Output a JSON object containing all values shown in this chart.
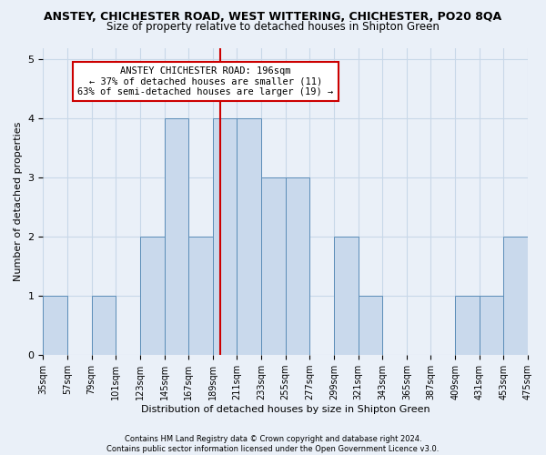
{
  "title_line1": "ANSTEY, CHICHESTER ROAD, WEST WITTERING, CHICHESTER, PO20 8QA",
  "title_line2": "Size of property relative to detached houses in Shipton Green",
  "xlabel": "Distribution of detached houses by size in Shipton Green",
  "ylabel": "Number of detached properties",
  "bin_edges": [
    35,
    57,
    79,
    101,
    123,
    145,
    167,
    189,
    211,
    233,
    255,
    277,
    299,
    321,
    343,
    365,
    387,
    409,
    431,
    453,
    475
  ],
  "bar_heights": [
    1,
    0,
    1,
    0,
    2,
    4,
    2,
    4,
    4,
    3,
    3,
    0,
    2,
    1,
    0,
    0,
    0,
    1,
    1,
    2
  ],
  "bar_color": "#c9d9ec",
  "bar_edgecolor": "#5b8db8",
  "grid_color": "#c8d8e8",
  "reference_line_x": 196,
  "reference_line_color": "#cc0000",
  "annotation_text": "ANSTEY CHICHESTER ROAD: 196sqm\n← 37% of detached houses are smaller (11)\n63% of semi-detached houses are larger (19) →",
  "annotation_box_color": "#ffffff",
  "annotation_box_edgecolor": "#cc0000",
  "ylim": [
    0,
    5.2
  ],
  "yticks": [
    0,
    1,
    2,
    3,
    4,
    5
  ],
  "footnote": "Contains HM Land Registry data © Crown copyright and database right 2024.\nContains public sector information licensed under the Open Government Licence v3.0.",
  "bg_color": "#eaf0f8"
}
